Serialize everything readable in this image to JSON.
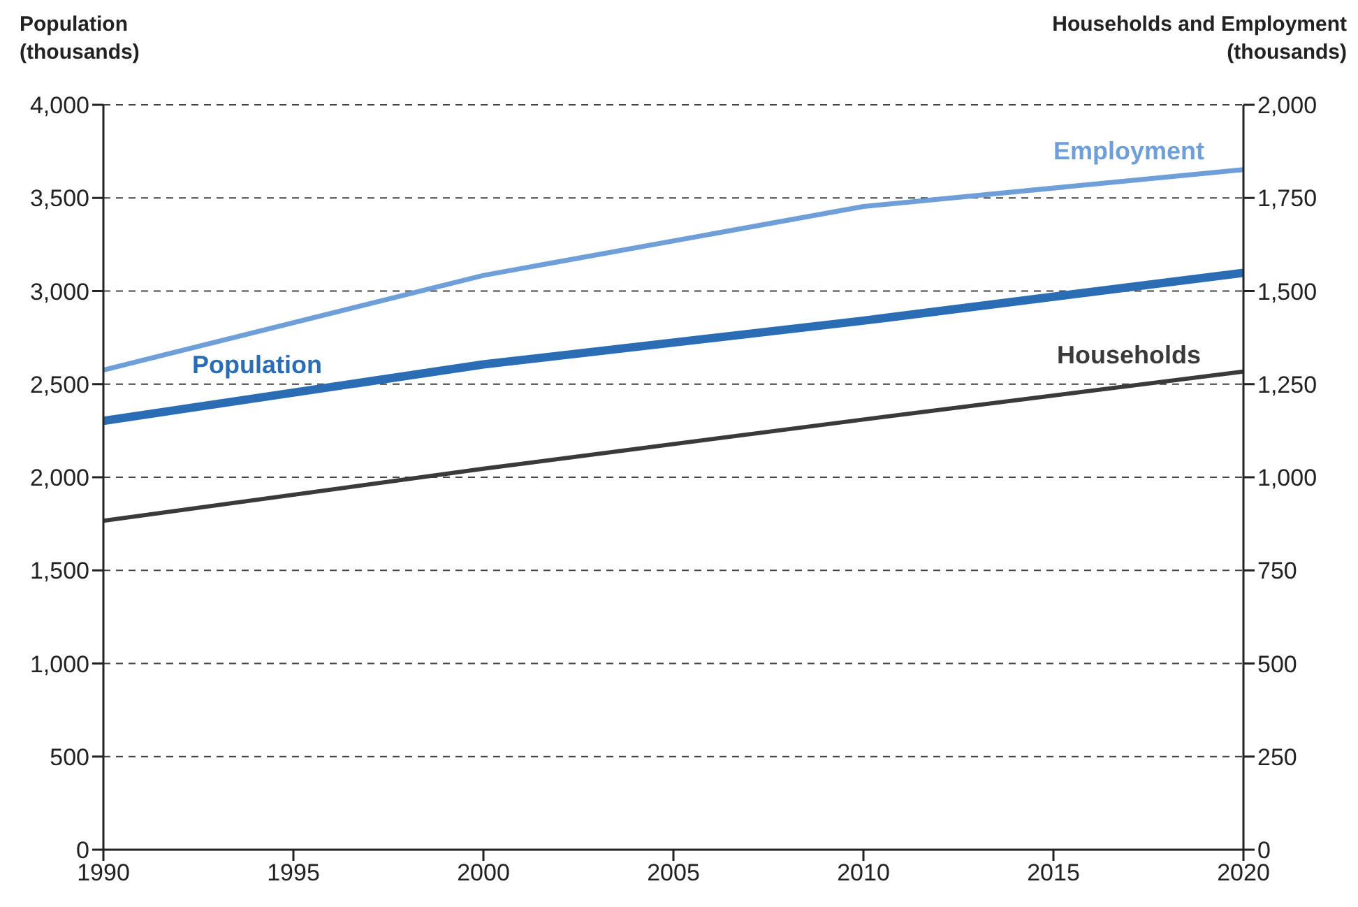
{
  "chart_data": {
    "type": "line",
    "ylabel": "Population\n(thousands)",
    "y2label": "Households and Employment\n(thousands)",
    "x": [
      1990,
      2000,
      2010,
      2020
    ],
    "series": [
      {
        "name": "Employment",
        "color": "#6f9fd8",
        "values": [
          1288,
          1542,
          1727,
          1826
        ],
        "axis": "y2"
      },
      {
        "name": "Population",
        "color": "#2a6db5",
        "values": [
          2303,
          2606,
          2841,
          3098
        ]
      },
      {
        "name": "Households",
        "color": "#3a3a3a",
        "values": [
          883,
          1023,
          1155,
          1284
        ],
        "axis": "y2"
      }
    ],
    "xlim": [
      1990,
      2020
    ],
    "xticks": [
      1990,
      1995,
      2000,
      2005,
      2010,
      2015,
      2020
    ],
    "ylim": [
      0,
      4000
    ],
    "yticks": [
      {
        "value": 0,
        "label": "0"
      },
      {
        "value": 500,
        "label": "500"
      },
      {
        "value": 1000,
        "label": "1,000"
      },
      {
        "value": 1500,
        "label": "1,500"
      },
      {
        "value": 2000,
        "label": "2,000"
      },
      {
        "value": 2500,
        "label": "2,500"
      },
      {
        "value": 3000,
        "label": "3,000"
      },
      {
        "value": 3500,
        "label": "3,500"
      },
      {
        "value": 4000,
        "label": "4,000"
      }
    ],
    "y2lim": [
      0,
      2000
    ],
    "y2ticks": [
      {
        "value": 0,
        "label": "0"
      },
      {
        "value": 250,
        "label": "250"
      },
      {
        "value": 500,
        "label": "500"
      },
      {
        "value": 750,
        "label": "750"
      },
      {
        "value": 1000,
        "label": "1,000"
      },
      {
        "value": 1250,
        "label": "1,250"
      },
      {
        "value": 1500,
        "label": "1,500"
      },
      {
        "value": 1750,
        "label": "1,750"
      },
      {
        "value": 2000,
        "label": "2,000"
      }
    ],
    "grid": "y",
    "legend": false,
    "line_style": "solid",
    "marker": "none"
  }
}
